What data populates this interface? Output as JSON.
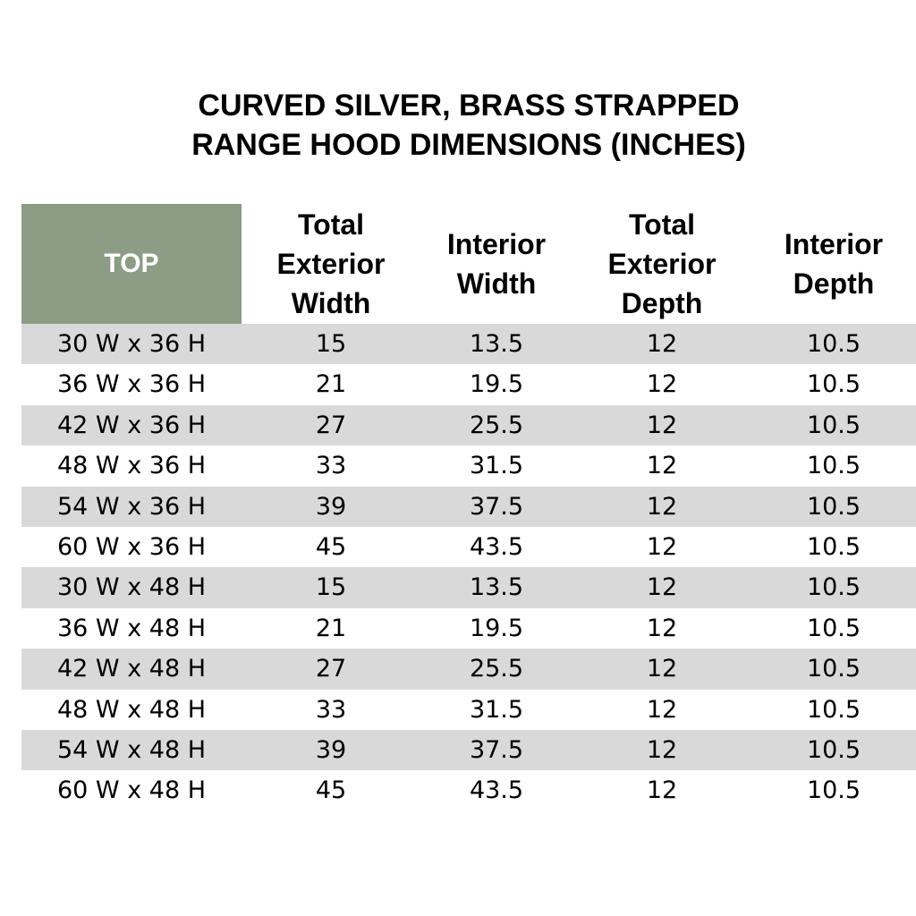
{
  "title": {
    "line1": "CURVED SILVER, BRASS STRAPPED",
    "line2": "RANGE HOOD DIMENSIONS (INCHES)"
  },
  "colors": {
    "header_top_bg": "#8c9c85",
    "row_shade": "#d9d9d9"
  },
  "table": {
    "headers": [
      "TOP",
      "Total\nExterior\nWidth",
      "Interior\nWidth",
      "Total\nExterior\nDepth",
      "Interior\nDepth"
    ],
    "rows": [
      [
        "30 W x 36 H",
        "15",
        "13.5",
        "12",
        "10.5"
      ],
      [
        "36 W x 36 H",
        "21",
        "19.5",
        "12",
        "10.5"
      ],
      [
        "42 W x 36 H",
        "27",
        "25.5",
        "12",
        "10.5"
      ],
      [
        "48 W x 36 H",
        "33",
        "31.5",
        "12",
        "10.5"
      ],
      [
        "54 W x 36 H",
        "39",
        "37.5",
        "12",
        "10.5"
      ],
      [
        "60 W x 36 H",
        "45",
        "43.5",
        "12",
        "10.5"
      ],
      [
        "30 W x 48 H",
        "15",
        "13.5",
        "12",
        "10.5"
      ],
      [
        "36 W x 48 H",
        "21",
        "19.5",
        "12",
        "10.5"
      ],
      [
        "42 W x 48 H",
        "27",
        "25.5",
        "12",
        "10.5"
      ],
      [
        "48 W x 48 H",
        "33",
        "31.5",
        "12",
        "10.5"
      ],
      [
        "54 W x 48 H",
        "39",
        "37.5",
        "12",
        "10.5"
      ],
      [
        "60 W x 48 H",
        "45",
        "43.5",
        "12",
        "10.5"
      ]
    ]
  }
}
